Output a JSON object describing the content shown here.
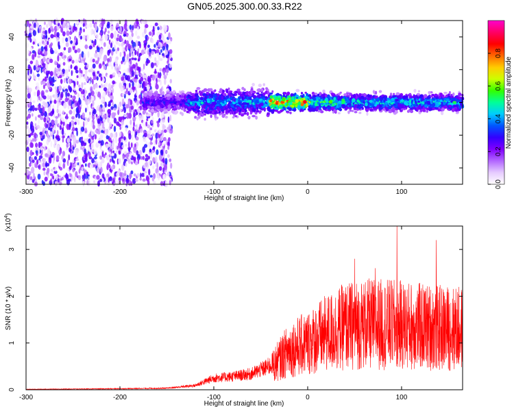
{
  "title": "GN05.2025.300.00.33.R22",
  "chart_data": [
    {
      "type": "heatmap",
      "xlabel": "Height of straight line (km)",
      "ylabel": "Frequency (Hz)",
      "xlim": [
        -300,
        165
      ],
      "ylim": [
        -50,
        50
      ],
      "xticks": [
        -300,
        -200,
        -100,
        0,
        100
      ],
      "yticks": [
        -40,
        -20,
        0,
        20,
        40
      ],
      "colorbar": {
        "label": "Normalized spectral amplitude",
        "range": [
          0,
          1
        ],
        "ticks": [
          0.0,
          0.2,
          0.4,
          0.6,
          0.8
        ],
        "tick_labels": [
          "0.0",
          "0.2",
          "0.4",
          "0.6",
          "0.8"
        ],
        "colormap": [
          "#ffffff",
          "#e6ccff",
          "#b266ff",
          "#8000ff",
          "#3300ff",
          "#0055ff",
          "#00ccff",
          "#00ff99",
          "#33ff00",
          "#ccff00",
          "#ffcc00",
          "#ff6600",
          "#ff0000",
          "#ff0066",
          "#ff00cc"
        ]
      },
      "description_of_content": "broadband noise for heights below about -145 km; narrow band near 0 Hz from about -140 km to 165 km, peak amplitude near 0.9 around -40 to 0 km"
    },
    {
      "type": "line",
      "xlabel": "Height of straight line (km)",
      "ylabel": "SNR (10 * v/v)",
      "y_scale_label": "(x10",
      "y_scale_exp": "4",
      "xlim": [
        -300,
        165
      ],
      "ylim": [
        0,
        3.5
      ],
      "xticks": [
        -300,
        -200,
        -100,
        0,
        100
      ],
      "yticks": [
        0,
        1,
        2,
        3
      ],
      "color": "#ff0000",
      "envelope_points": [
        {
          "x": -300,
          "y": 0.01
        },
        {
          "x": -200,
          "y": 0.02
        },
        {
          "x": -150,
          "y": 0.03
        },
        {
          "x": -120,
          "y": 0.08
        },
        {
          "x": -100,
          "y": 0.22
        },
        {
          "x": -80,
          "y": 0.25
        },
        {
          "x": -60,
          "y": 0.3
        },
        {
          "x": -40,
          "y": 0.45
        },
        {
          "x": -20,
          "y": 0.85
        },
        {
          "x": 0,
          "y": 1.0
        },
        {
          "x": 20,
          "y": 1.2
        },
        {
          "x": 40,
          "y": 1.35
        },
        {
          "x": 60,
          "y": 1.4
        },
        {
          "x": 80,
          "y": 1.4
        },
        {
          "x": 100,
          "y": 1.38
        },
        {
          "x": 120,
          "y": 1.35
        },
        {
          "x": 140,
          "y": 1.32
        },
        {
          "x": 165,
          "y": 1.3
        }
      ],
      "peaks": [
        {
          "x": 95,
          "y": 3.5
        },
        {
          "x": 137,
          "y": 3.2
        },
        {
          "x": 50,
          "y": 2.8
        },
        {
          "x": 72,
          "y": 2.6
        }
      ]
    }
  ]
}
